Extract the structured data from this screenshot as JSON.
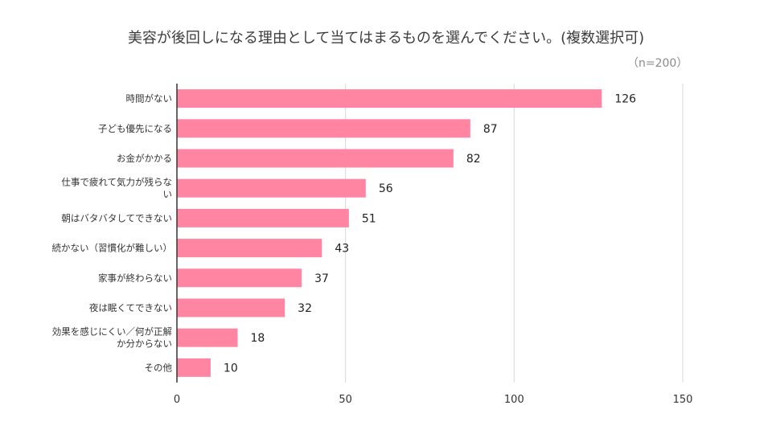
{
  "chart_data": {
    "type": "bar",
    "orientation": "horizontal",
    "title": "美容が後回しになる理由として当てはまるものを選んでください。(複数選択可)",
    "subtitle": "（n=200）",
    "categories": [
      [
        "時間がない"
      ],
      [
        "子ども優先になる"
      ],
      [
        "お金がかかる"
      ],
      [
        "仕事で疲れて気力が残らな",
        "い"
      ],
      [
        "朝はバタバタしてできない"
      ],
      [
        "続かない（習慣化が難しい）"
      ],
      [
        "家事が終わらない"
      ],
      [
        "夜は眠くてできない"
      ],
      [
        "効果を感じにくい／何が正解",
        "か分からない"
      ],
      [
        "その他"
      ]
    ],
    "values": [
      126,
      87,
      82,
      56,
      51,
      43,
      37,
      32,
      18,
      10
    ],
    "xlim": [
      0,
      150
    ],
    "xticks": [
      0,
      50,
      100,
      150
    ],
    "grid": true,
    "bar_color": "#ff85a2"
  }
}
